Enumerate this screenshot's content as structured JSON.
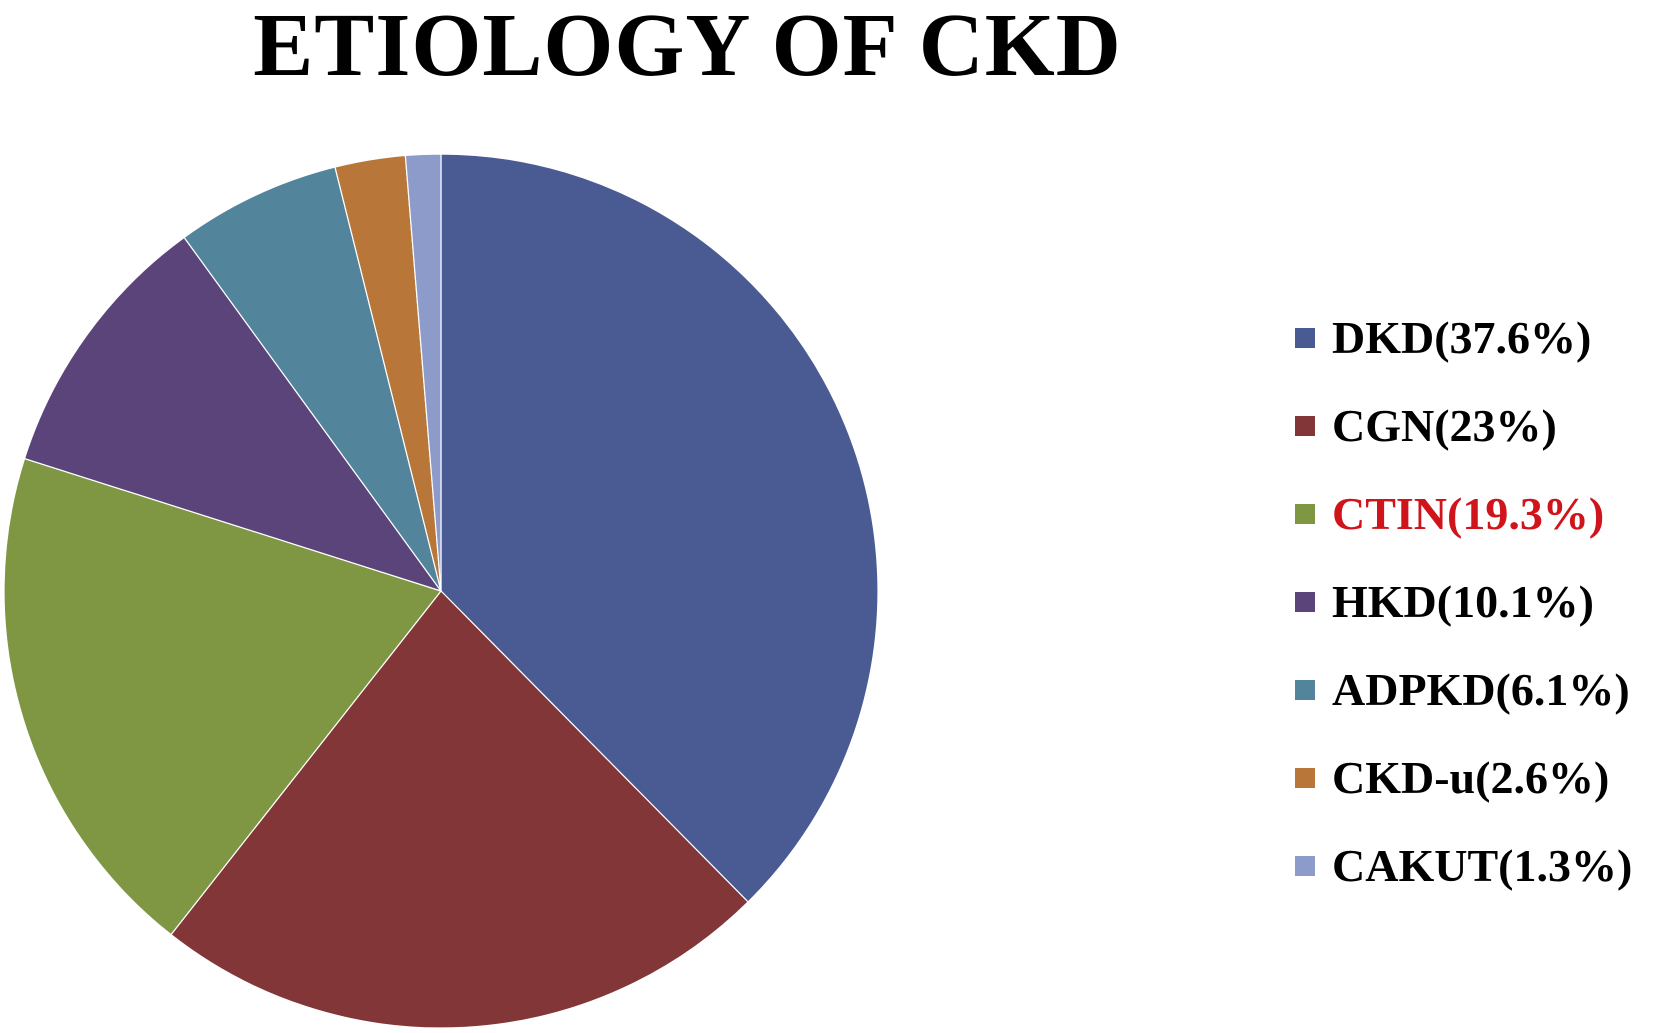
{
  "chart_data": {
    "type": "pie",
    "title": "ETIOLOGY OF CKD",
    "slices": [
      {
        "label": "DKD(37.6%)",
        "name": "DKD",
        "value": 37.6,
        "color": "#4a5b93"
      },
      {
        "label": "CGN(23%)",
        "name": "CGN",
        "value": 23,
        "color": "#823637"
      },
      {
        "label": "CTIN(19.3%)",
        "name": "CTIN",
        "value": 19.3,
        "color": "#7f9743",
        "label_color": "#d0141b"
      },
      {
        "label": "HKD(10.1%)",
        "name": "HKD",
        "value": 10.1,
        "color": "#5b4479"
      },
      {
        "label": "ADPKD(6.1%)",
        "name": "ADPKD",
        "value": 6.1,
        "color": "#52849c"
      },
      {
        "label": "CKD-u(2.6%)",
        "name": "CKD-u",
        "value": 2.6,
        "color": "#b87739"
      },
      {
        "label": "CAKUT(1.3%)",
        "name": "CAKUT",
        "value": 1.3,
        "color": "#8c9bca"
      }
    ],
    "start_angle": "12 o'clock",
    "direction": "clockwise",
    "legend_position": "right"
  }
}
